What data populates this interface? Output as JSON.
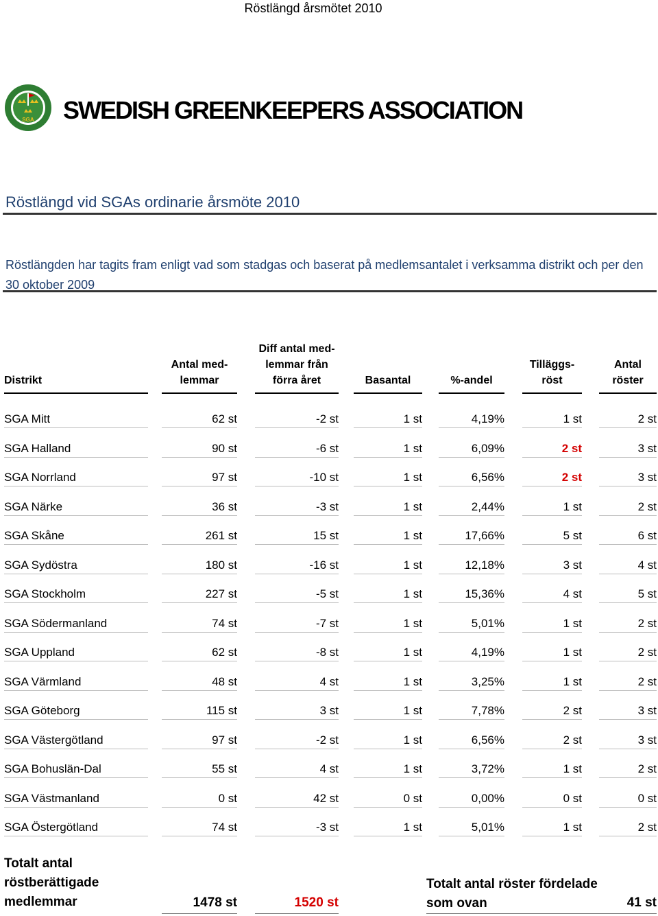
{
  "running_header": "Röstlängd årsmötet 2010",
  "organization": "SWEDISH GREENKEEPERS ASSOCIATION",
  "logo": {
    "text_top": "SWEDISH GREENKEEPERS ASSOCIATION",
    "text_center": "SGA"
  },
  "title": "Röstlängd vid SGAs ordinarie årsmöte 2010",
  "intro": "Röstlängden har tagits fram enligt vad som stadgas och baserat på medlemsantalet i verksamma distrikt och per den 30 oktober 2009",
  "columns": {
    "distrikt": [
      "Distrikt"
    ],
    "antal": [
      "Antal med-",
      "lemmar"
    ],
    "diff": [
      "Diff antal med-",
      "lemmar från",
      "förra året"
    ],
    "basantal": [
      "Basantal"
    ],
    "andel": [
      "%-andel"
    ],
    "tillagg": [
      "Tilläggs-",
      "röst"
    ],
    "roster": [
      "Antal",
      "röster"
    ]
  },
  "rows": [
    [
      "SGA Mitt",
      "62 st",
      "-2 st",
      "1 st",
      "4,19%",
      "1 st",
      "2 st"
    ],
    [
      "SGA Halland",
      "90 st",
      "-6 st",
      "1 st",
      "6,09%",
      "2 st",
      "3 st"
    ],
    [
      "SGA Norrland",
      "97 st",
      "-10 st",
      "1 st",
      "6,56%",
      "2 st",
      "3 st"
    ],
    [
      "SGA Närke",
      "36 st",
      "-3 st",
      "1 st",
      "2,44%",
      "1 st",
      "2 st"
    ],
    [
      "SGA Skåne",
      "261 st",
      "15 st",
      "1 st",
      "17,66%",
      "5 st",
      "6 st"
    ],
    [
      "SGA Sydöstra",
      "180 st",
      "-16 st",
      "1 st",
      "12,18%",
      "3 st",
      "4 st"
    ],
    [
      "SGA Stockholm",
      "227 st",
      "-5 st",
      "1 st",
      "15,36%",
      "4 st",
      "5 st"
    ],
    [
      "SGA Södermanland",
      "74 st",
      "-7 st",
      "1 st",
      "5,01%",
      "1 st",
      "2 st"
    ],
    [
      "SGA Uppland",
      "62 st",
      "-8 st",
      "1 st",
      "4,19%",
      "1 st",
      "2 st"
    ],
    [
      "SGA Värmland",
      "48 st",
      "4 st",
      "1 st",
      "3,25%",
      "1 st",
      "2 st"
    ],
    [
      "SGA Göteborg",
      "115 st",
      "3 st",
      "1 st",
      "7,78%",
      "2 st",
      "3 st"
    ],
    [
      "SGA Västergötland",
      "97 st",
      "-2 st",
      "1 st",
      "6,56%",
      "2 st",
      "3 st"
    ],
    [
      "SGA Bohuslän-Dal",
      "55 st",
      "4 st",
      "1 st",
      "3,72%",
      "1 st",
      "2 st"
    ],
    [
      "SGA Västmanland",
      "0 st",
      "42 st",
      "0 st",
      "0,00%",
      "0 st",
      "0 st"
    ],
    [
      "SGA Östergötland",
      "74 st",
      "-3 st",
      "1 st",
      "5,01%",
      "1 st",
      "2 st"
    ]
  ],
  "highlighted_cells": [
    [
      1,
      5
    ],
    [
      2,
      5
    ]
  ],
  "totals": {
    "label": [
      "Totalt antal",
      "röstberättigade",
      "medlemmar"
    ],
    "members": "1478 st",
    "members_plus_diff": "1520 st",
    "votes_label": [
      "Totalt antal röster fördelade",
      "som ovan"
    ],
    "votes": "41 st"
  },
  "colors": {
    "title": "#1f3f6e",
    "highlight": "#d40000",
    "logo_green": "#2e7d32"
  }
}
